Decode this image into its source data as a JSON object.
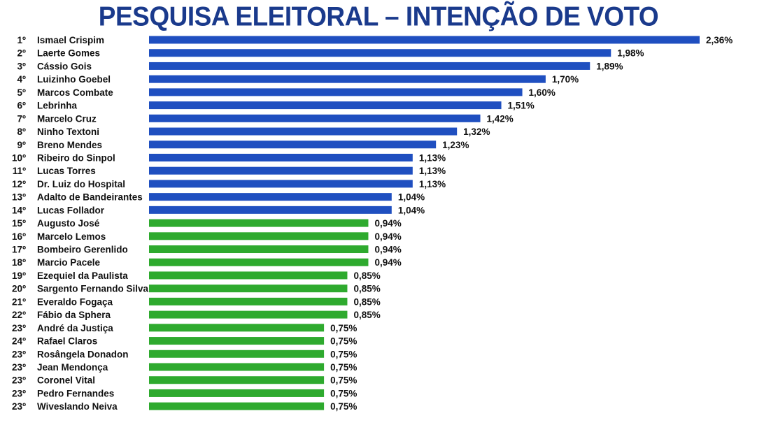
{
  "title": "PESQUISA ELEITORAL – INTENÇÃO DE VOTO",
  "colors": {
    "title": "#1a3a8c",
    "bar_blue": "#1f4fc0",
    "bar_green": "#2eaa2e",
    "text": "#111111"
  },
  "chart_data": {
    "type": "bar",
    "orientation": "horizontal",
    "title": "PESQUISA ELEITORAL – INTENÇÃO DE VOTO",
    "xlabel": "",
    "ylabel": "",
    "grid": false,
    "legend": "none",
    "value_suffix": "%",
    "decimal_separator": ",",
    "ranks": [
      "1º",
      "2º",
      "3º",
      "4º",
      "5º",
      "6º",
      "7º",
      "8º",
      "9º",
      "10º",
      "11º",
      "12º",
      "13º",
      "14º",
      "15º",
      "16º",
      "17º",
      "18º",
      "19º",
      "20º",
      "21º",
      "22º",
      "23º",
      "24º",
      "23º",
      "23º",
      "23º",
      "23º",
      "23º"
    ],
    "categories": [
      "Ismael Crispim",
      "Laerte Gomes",
      "Cássio Gois",
      "Luizinho Goebel",
      "Marcos Combate",
      "Lebrinha",
      "Marcelo Cruz",
      "Ninho Textoni",
      "Breno Mendes",
      "Ribeiro do Sinpol",
      "Lucas Torres",
      "Dr. Luiz do Hospital",
      "Adalto de Bandeirantes",
      "Lucas Follador",
      "Augusto José",
      "Marcelo Lemos",
      "Bombeiro Gerenlido",
      "Marcio Pacele",
      "Ezequiel da Paulista",
      "Sargento Fernando Silva",
      "Everaldo Fogaça",
      "Fábio da Sphera",
      "André da Justiça",
      "Rafael Claros",
      "Rosângela Donadon",
      "Jean Mendonça",
      "Coronel Vital",
      "Pedro Fernandes",
      "Wiveslando Neiva"
    ],
    "values": [
      2.36,
      1.98,
      1.89,
      1.7,
      1.6,
      1.51,
      1.42,
      1.32,
      1.23,
      1.13,
      1.13,
      1.13,
      1.04,
      1.04,
      0.94,
      0.94,
      0.94,
      0.94,
      0.85,
      0.85,
      0.85,
      0.85,
      0.75,
      0.75,
      0.75,
      0.75,
      0.75,
      0.75,
      0.75
    ],
    "value_labels": [
      "2,36%",
      "1,98%",
      "1,89%",
      "1,70%",
      "1,60%",
      "1,51%",
      "1,42%",
      "1,32%",
      "1,23%",
      "1,13%",
      "1,13%",
      "1,13%",
      "1,04%",
      "1,04%",
      "0,94%",
      "0,94%",
      "0,94%",
      "0,94%",
      "0,85%",
      "0,85%",
      "0,85%",
      "0,85%",
      "0,75%",
      "0,75%",
      "0,75%",
      "0,75%",
      "0,75%",
      "0,75%",
      "0,75%"
    ],
    "bar_colors": [
      "blue",
      "blue",
      "blue",
      "blue",
      "blue",
      "blue",
      "blue",
      "blue",
      "blue",
      "blue",
      "blue",
      "blue",
      "blue",
      "blue",
      "green",
      "green",
      "green",
      "green",
      "green",
      "green",
      "green",
      "green",
      "green",
      "green",
      "green",
      "green",
      "green",
      "green",
      "green"
    ],
    "xlim": [
      0,
      2.36
    ]
  }
}
